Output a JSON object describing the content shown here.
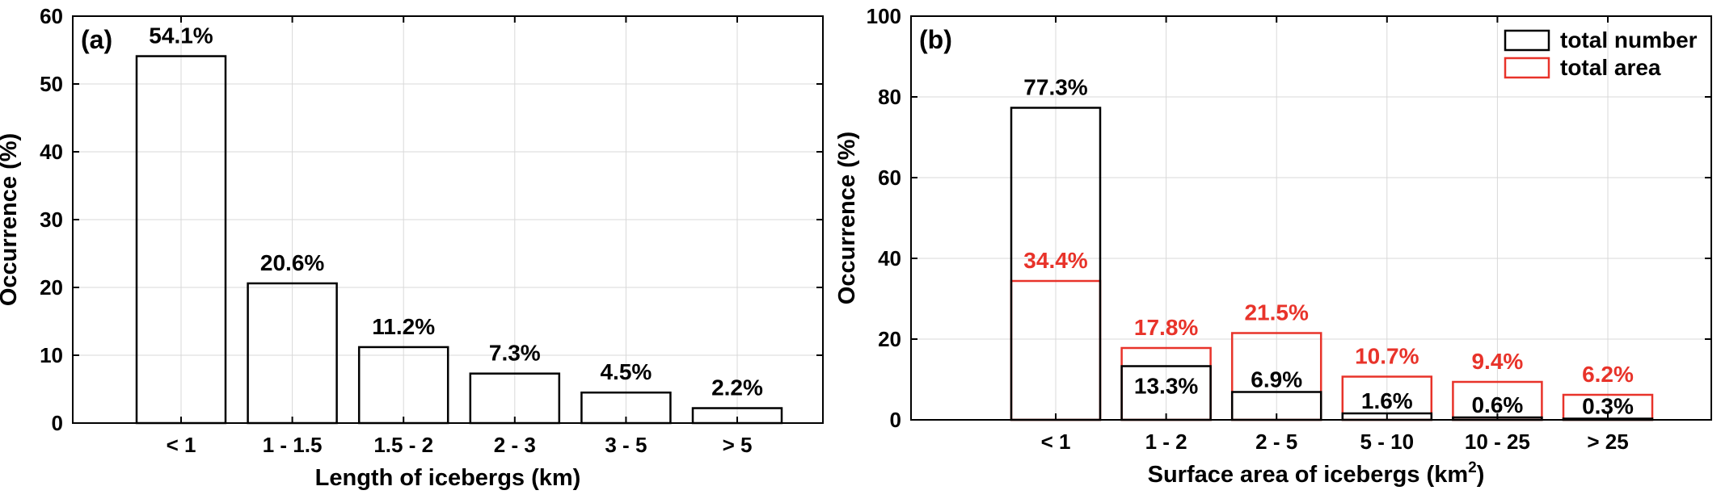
{
  "colors": {
    "total_number": "#000000",
    "total_area": "#e8332a",
    "grid": "#d9d9d9"
  },
  "chart_data": [
    {
      "type": "bar",
      "panel_label": "(a)",
      "categories": [
        "< 1",
        "1 - 1.5",
        "1.5 - 2",
        "2 - 3",
        "3 - 5",
        "> 5"
      ],
      "values": [
        54.1,
        20.6,
        11.2,
        7.3,
        4.5,
        2.2
      ],
      "data_labels": [
        "54.1%",
        "20.6%",
        "11.2%",
        "7.3%",
        "4.5%",
        "2.2%"
      ],
      "xlabel": "Length of icebergs (km)",
      "ylabel": "Occurrence (%)",
      "ylim": [
        0,
        60
      ],
      "yticks": [
        0,
        10,
        20,
        30,
        40,
        50,
        60
      ],
      "grid": true
    },
    {
      "type": "bar",
      "panel_label": "(b)",
      "categories": [
        "< 1",
        "1 - 2",
        "2 - 5",
        "5 - 10",
        "10 - 25",
        "> 25"
      ],
      "series": [
        {
          "name": "total number",
          "color": "#000000",
          "values": [
            77.3,
            13.3,
            6.9,
            1.6,
            0.6,
            0.3
          ],
          "data_labels": [
            "77.3%",
            "13.3%",
            "6.9%",
            "1.6%",
            "0.6%",
            "0.3%"
          ]
        },
        {
          "name": "total area",
          "color": "#e8332a",
          "values": [
            34.4,
            17.8,
            21.5,
            10.7,
            9.4,
            6.2
          ],
          "data_labels": [
            "34.4%",
            "17.8%",
            "21.5%",
            "10.7%",
            "9.4%",
            "6.2%"
          ]
        }
      ],
      "xlabel_main": "Surface area of icebergs (km",
      "xlabel_sup": "2",
      "xlabel_end": ")",
      "ylabel": "Occurrence (%)",
      "ylim": [
        0,
        100
      ],
      "yticks": [
        0,
        20,
        40,
        60,
        80,
        100
      ],
      "grid": true,
      "legend_placement": "top-right"
    }
  ]
}
